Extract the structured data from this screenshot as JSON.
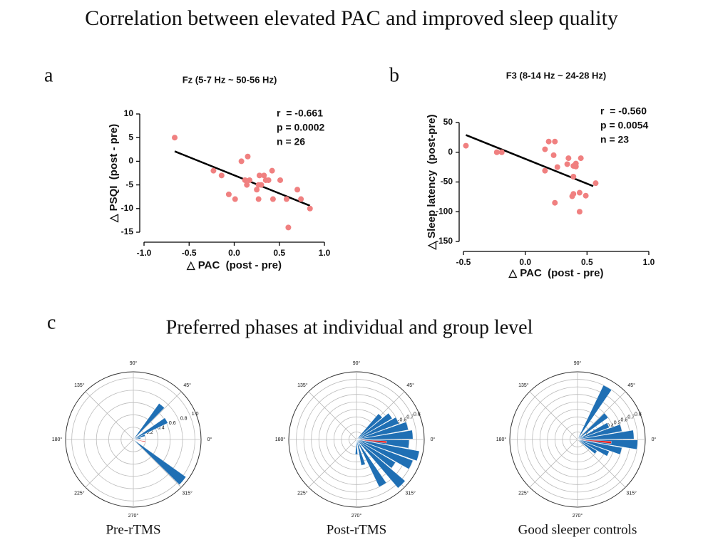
{
  "title": "Correlation between elevated PAC and improved sleep quality",
  "panel_labels": [
    "a",
    "b",
    "c"
  ],
  "section_title": "Preferred phases at individual and group level",
  "chart_data": [
    {
      "type": "scatter",
      "title": "Fz (5-7 Hz ~ 50-56 Hz)",
      "xlabel": "△ PAC  (post - pre)",
      "ylabel": "△ PSQI  (post - pre)",
      "annotations": [
        "r  = -0.661",
        "p = 0.0002",
        "n = 26"
      ],
      "color": "#f08080",
      "x": [
        -0.66,
        -0.23,
        -0.14,
        -0.06,
        0.01,
        0.08,
        0.15,
        0.12,
        0.14,
        0.17,
        0.25,
        0.27,
        0.28,
        0.3,
        0.27,
        0.35,
        0.38,
        0.42,
        0.43,
        0.51,
        0.58,
        0.6,
        0.7,
        0.74,
        0.84,
        0.33
      ],
      "values": [
        5,
        -2,
        -3,
        -7,
        -8,
        0,
        1,
        -4,
        -5,
        -4,
        -6,
        -5,
        -3,
        -5,
        -8,
        -4,
        -4,
        -2,
        -8,
        -4,
        -8,
        -14,
        -6,
        -8,
        -10,
        -3
      ],
      "fit": {
        "x": [
          -0.66,
          0.84
        ],
        "y": [
          2.1,
          -9.4
        ]
      },
      "xlim": [
        -1,
        1
      ],
      "xticks": [
        {
          "value": -1,
          "label": "-1.0"
        },
        -0.5,
        {
          "value": 0,
          "label": "0.0"
        },
        0.5,
        {
          "value": 1,
          "label": "1.0"
        }
      ],
      "ylim": [
        -15,
        10
      ],
      "yticks": [
        -15,
        -10,
        -5,
        0,
        5,
        10
      ]
    },
    {
      "type": "scatter",
      "title": "F3 (8-14 Hz ~ 24-28 Hz)",
      "xlabel": "△ PAC  (post - pre)",
      "ylabel": "△ Sleep latency  (post-pre)",
      "annotations": [
        "r  = -0.560",
        "p = 0.0054",
        "n = 23"
      ],
      "color": "#f08080",
      "x": [
        -0.48,
        -0.23,
        -0.19,
        0.19,
        0.24,
        0.16,
        0.23,
        0.26,
        0.16,
        0.34,
        0.35,
        0.39,
        0.41,
        0.41,
        0.45,
        0.39,
        0.39,
        0.38,
        0.44,
        0.49,
        0.44,
        0.24,
        0.57
      ],
      "values": [
        11,
        0,
        0,
        18,
        18,
        5,
        -5,
        -25,
        -31,
        -20,
        -10,
        -23,
        -19,
        -24,
        -10,
        -41,
        -70,
        -74,
        -68,
        -73,
        -100,
        -85,
        -52
      ],
      "fit": {
        "x": [
          -0.48,
          0.55
        ],
        "y": [
          29,
          -57
        ]
      },
      "xlim": [
        -0.5,
        1
      ],
      "xticks": [
        -0.5,
        {
          "value": 0,
          "label": "0.0"
        },
        0.5,
        {
          "value": 1,
          "label": "1.0"
        }
      ],
      "ylim": [
        -150,
        50
      ],
      "yticks": [
        -150,
        -100,
        -50,
        0,
        50
      ]
    },
    {
      "type": "polar_bar",
      "caption": "Pre-rTMS",
      "color": "#1f6fb4",
      "theta": [
        50,
        30,
        20,
        10,
        320
      ],
      "values": [
        0.72,
        0.62,
        0.2,
        0.12,
        1.05
      ],
      "mean": {
        "theta": 350,
        "value": 0.2,
        "color": "#e31a1c"
      },
      "rlim": [
        0,
        1.1
      ],
      "rticks": [
        0.2,
        0.4,
        0.6,
        0.8,
        {
          "value": 1,
          "label": "1.0"
        }
      ],
      "thetaticks": [
        {
          "value": 0,
          "label": "0°"
        },
        {
          "value": 45,
          "label": "45°"
        },
        {
          "value": 90,
          "label": "90°"
        },
        {
          "value": 135,
          "label": "135°"
        },
        {
          "value": 180,
          "label": "180°"
        },
        {
          "value": 225,
          "label": "225°"
        },
        {
          "value": 270,
          "label": "270°"
        },
        {
          "value": 315,
          "label": "315°"
        }
      ]
    },
    {
      "type": "polar_bar",
      "caption": "Post-rTMS",
      "color": "#1f6fb4",
      "theta": [
        45,
        35,
        25,
        15,
        5,
        355,
        345,
        335,
        325,
        315,
        300,
        285,
        270
      ],
      "values": [
        0.45,
        0.55,
        0.6,
        0.7,
        0.75,
        0.7,
        0.85,
        0.8,
        0.6,
        0.85,
        0.7,
        0.35,
        0.2
      ],
      "mean": {
        "theta": 355,
        "value": 0.4,
        "color": "#e31a1c"
      },
      "rlim": [
        0,
        0.9
      ],
      "rticks": [
        0.1,
        0.2,
        0.3,
        0.4,
        0.5,
        0.6,
        0.7,
        0.8
      ],
      "thetaticks": [
        {
          "value": 0,
          "label": "0°"
        },
        {
          "value": 45,
          "label": "45°"
        },
        {
          "value": 90,
          "label": "90°"
        },
        {
          "value": 135,
          "label": "135°"
        },
        {
          "value": 180,
          "label": "180°"
        },
        {
          "value": 225,
          "label": "225°"
        },
        {
          "value": 270,
          "label": "270°"
        },
        {
          "value": 315,
          "label": "315°"
        }
      ]
    },
    {
      "type": "polar_bar",
      "caption": "Good sleeper controls",
      "color": "#1f6fb4",
      "theta": [
        60,
        40,
        25,
        15,
        5,
        355,
        345,
        335,
        325
      ],
      "values": [
        0.8,
        0.5,
        0.45,
        0.6,
        0.75,
        0.8,
        0.6,
        0.45,
        0.3
      ],
      "mean": {
        "theta": 355,
        "value": 0.45,
        "color": "#e31a1c"
      },
      "rlim": [
        0,
        0.9
      ],
      "rticks": [
        0.1,
        0.2,
        0.3,
        0.4,
        0.5,
        0.6,
        0.7,
        0.8
      ],
      "thetaticks": [
        {
          "value": 0,
          "label": "0°"
        },
        {
          "value": 45,
          "label": "45°"
        },
        {
          "value": 90,
          "label": "90°"
        },
        {
          "value": 135,
          "label": "135°"
        },
        {
          "value": 180,
          "label": "180°"
        },
        {
          "value": 225,
          "label": "225°"
        },
        {
          "value": 270,
          "label": "270°"
        },
        {
          "value": 315,
          "label": "315°"
        }
      ]
    }
  ]
}
